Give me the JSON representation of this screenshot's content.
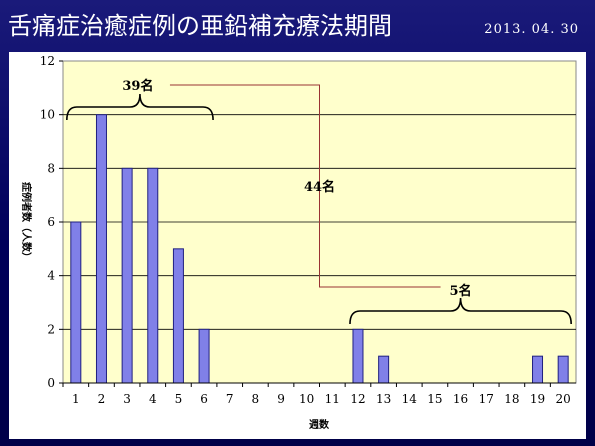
{
  "slide": {
    "title": "舌痛症治癒症例の亜鉛補充療法期間",
    "date": "2013. 04. 30"
  },
  "chart_data": {
    "type": "bar",
    "categories": [
      "1",
      "2",
      "3",
      "4",
      "5",
      "6",
      "7",
      "8",
      "9",
      "10",
      "11",
      "12",
      "13",
      "14",
      "15",
      "16",
      "17",
      "18",
      "19",
      "20"
    ],
    "values": [
      6,
      10,
      8,
      8,
      5,
      2,
      0,
      0,
      0,
      0,
      0,
      2,
      1,
      0,
      0,
      0,
      0,
      0,
      1,
      1
    ],
    "xlabel": "週数",
    "ylabel": "症例者数（人数）",
    "ylim": [
      0,
      12
    ],
    "yticks": [
      0,
      2,
      4,
      6,
      8,
      10,
      12
    ],
    "grid": true,
    "bar_color": "#8080e8",
    "plot_background": "#ffffcc",
    "annotations": {
      "group1": "39名",
      "group2": "5名",
      "total": "44名"
    }
  }
}
